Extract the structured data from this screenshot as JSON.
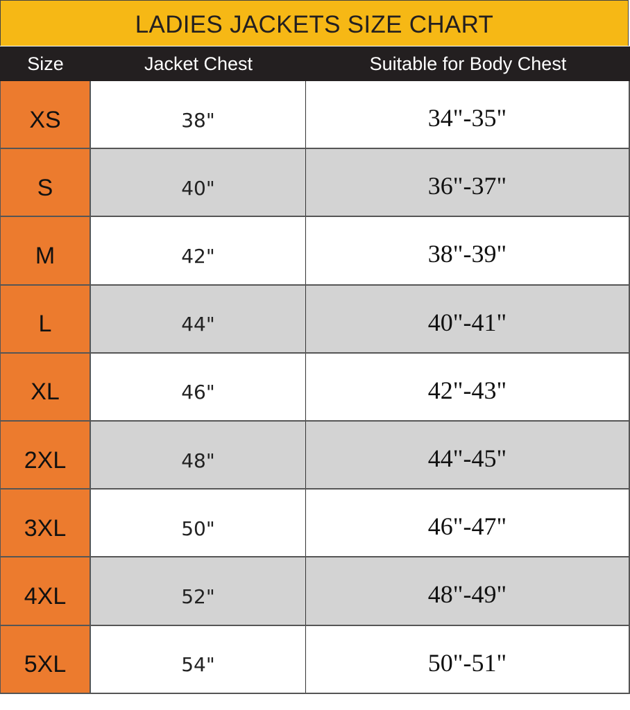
{
  "chart_data": {
    "type": "table",
    "title": "LADIES JACKETS SIZE CHART",
    "columns": [
      "Size",
      "Jacket Chest",
      "Suitable for Body Chest"
    ],
    "rows": [
      [
        "XS",
        "38\"",
        "34\"-35\""
      ],
      [
        "S",
        "40\"",
        "36\"-37\""
      ],
      [
        "M",
        "42\"",
        "38\"-39\""
      ],
      [
        "L",
        "44\"",
        "40\"-41\""
      ],
      [
        "XL",
        "46\"",
        "42\"-43\""
      ],
      [
        "2XL",
        "48\"",
        "44\"-45\""
      ],
      [
        "3XL",
        "50\"",
        "46\"-47\""
      ],
      [
        "4XL",
        "52\"",
        "48\"-49\""
      ],
      [
        "5XL",
        "54\"",
        "50\"-51\""
      ]
    ],
    "colors": {
      "title_bg": "#f6b815",
      "header_bg": "#231f20",
      "size_col_bg": "#ec7b2e",
      "alt_row_bg": "#d3d3d3"
    }
  }
}
